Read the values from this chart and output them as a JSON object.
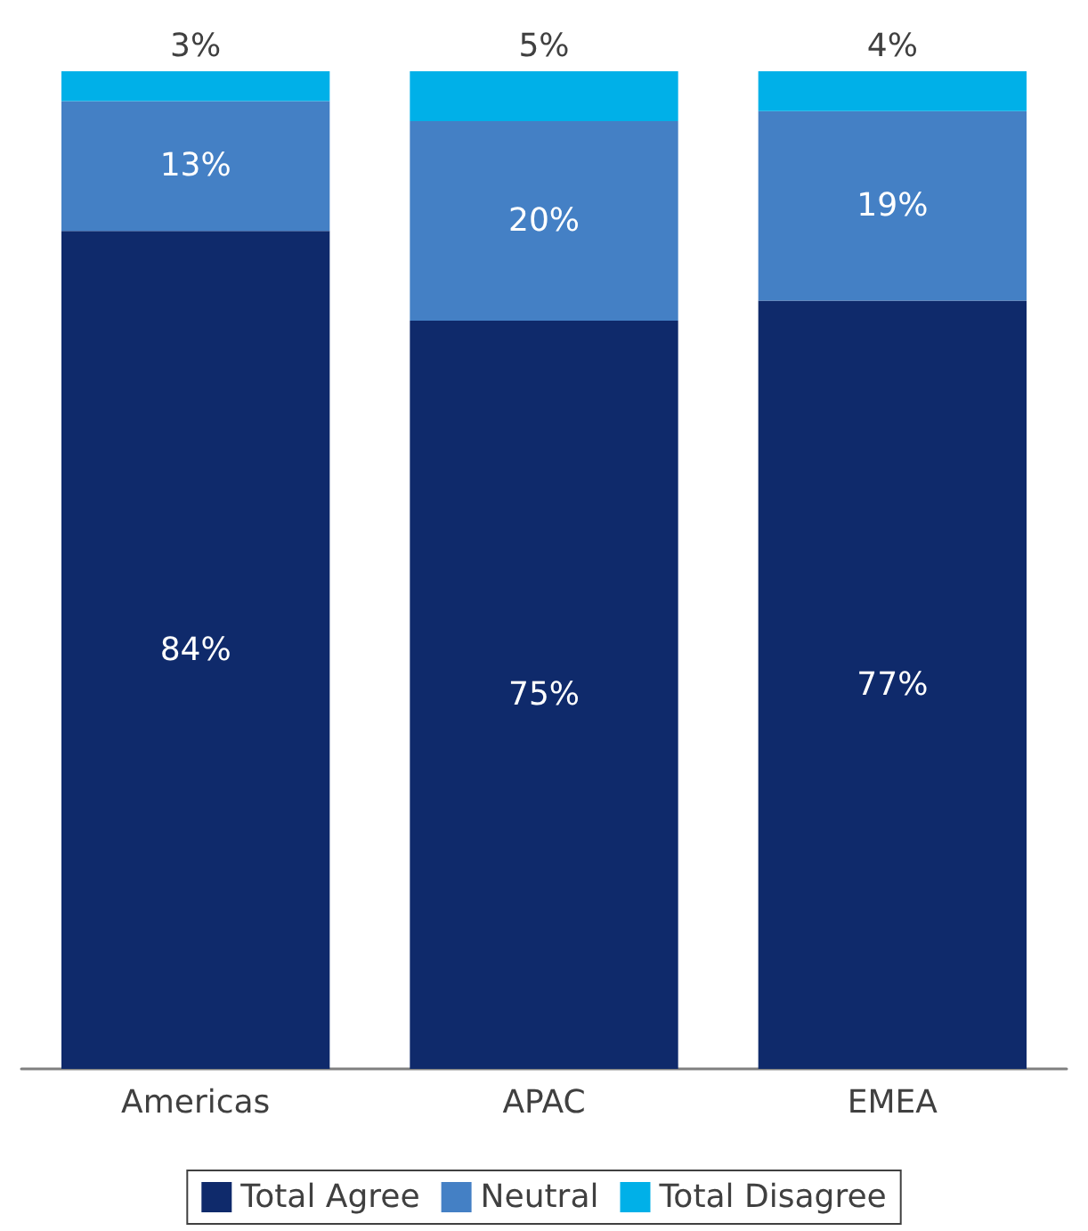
{
  "chart_data": {
    "type": "bar",
    "stacked": true,
    "categories": [
      "Americas",
      "APAC",
      "EMEA"
    ],
    "series": [
      {
        "name": "Total Agree",
        "color": "#0f2a6b",
        "values": [
          84,
          75,
          77
        ],
        "value_labels": [
          "84%",
          "75%",
          "77%"
        ]
      },
      {
        "name": "Neutral",
        "color": "#4480c5",
        "values": [
          13,
          20,
          19
        ],
        "value_labels": [
          "13%",
          "20%",
          "19%"
        ]
      },
      {
        "name": "Total Disagree",
        "color": "#00b0e8",
        "values": [
          3,
          5,
          4
        ],
        "value_labels": [
          "3%",
          "5%",
          "4%"
        ]
      }
    ],
    "legend": "bottom",
    "tick_labels": "x"
  }
}
